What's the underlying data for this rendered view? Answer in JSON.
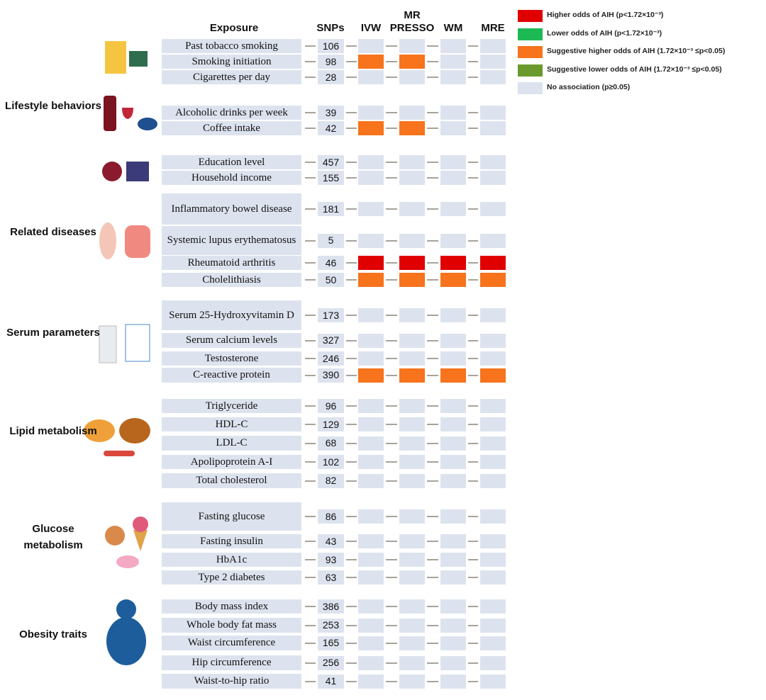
{
  "header": {
    "exposure": "Exposure",
    "snps": "SNPs",
    "methods": [
      "IVW",
      "MR PRESSO",
      "WM",
      "MRE"
    ]
  },
  "legend": [
    {
      "color": "#e00000",
      "label": "Higher odds of AIH (p<1.72×10⁻³)"
    },
    {
      "color": "#1db954",
      "label": "Lower odds of AIH (p<1.72×10⁻³)"
    },
    {
      "color": "#f7731c",
      "label": "Suggestive higher odds of AIH (1.72×10⁻³ ≤p<0.05)"
    },
    {
      "color": "#6a9a2e",
      "label": "Suggestive lower odds of AIH (1.72×10⁻³ ≤p<0.05)"
    },
    {
      "color": "#dde3ee",
      "label": "No association (p≥0.05)"
    }
  ],
  "groups": [
    {
      "label": "Lifestyle behaviors",
      "rows": [
        {
          "exposure": "Past tobacco smoking",
          "snps": "106",
          "cells": [
            "#dde3ee",
            "#dde3ee",
            "#dde3ee",
            "#dde3ee"
          ]
        },
        {
          "exposure": "Smoking initiation",
          "snps": "98",
          "cells": [
            "#f7731c",
            "#f7731c",
            "#dde3ee",
            "#dde3ee"
          ]
        },
        {
          "exposure": "Cigarettes per day",
          "snps": "28",
          "cells": [
            "#dde3ee",
            "#dde3ee",
            "#dde3ee",
            "#dde3ee"
          ]
        },
        {
          "exposure": "Alcoholic drinks per week",
          "snps": "39",
          "cells": [
            "#dde3ee",
            "#dde3ee",
            "#dde3ee",
            "#dde3ee"
          ]
        },
        {
          "exposure": "Coffee intake",
          "snps": "42",
          "cells": [
            "#f7731c",
            "#f7731c",
            "#dde3ee",
            "#dde3ee"
          ]
        },
        {
          "exposure": "Education level",
          "snps": "457",
          "cells": [
            "#dde3ee",
            "#dde3ee",
            "#dde3ee",
            "#dde3ee"
          ]
        },
        {
          "exposure": "Household income",
          "snps": "155",
          "cells": [
            "#dde3ee",
            "#dde3ee",
            "#dde3ee",
            "#dde3ee"
          ]
        }
      ]
    },
    {
      "label": "Related diseases",
      "rows": [
        {
          "exposure": "Inflammatory bowel disease",
          "snps": "181",
          "cells": [
            "#dde3ee",
            "#dde3ee",
            "#dde3ee",
            "#dde3ee"
          ]
        },
        {
          "exposure": "Systemic lupus erythematosus",
          "snps": "5",
          "cells": [
            "#dde3ee",
            "#dde3ee",
            "#dde3ee",
            "#dde3ee"
          ]
        },
        {
          "exposure": "Rheumatoid arthritis",
          "snps": "46",
          "cells": [
            "#e00000",
            "#e00000",
            "#e00000",
            "#e00000"
          ]
        },
        {
          "exposure": "Cholelithiasis",
          "snps": "50",
          "cells": [
            "#f7731c",
            "#f7731c",
            "#f7731c",
            "#f7731c"
          ]
        }
      ]
    },
    {
      "label": "Serum parameters",
      "rows": [
        {
          "exposure": "Serum 25-Hydroxyvitamin D",
          "snps": "173",
          "cells": [
            "#dde3ee",
            "#dde3ee",
            "#dde3ee",
            "#dde3ee"
          ]
        },
        {
          "exposure": "Serum calcium levels",
          "snps": "327",
          "cells": [
            "#dde3ee",
            "#dde3ee",
            "#dde3ee",
            "#dde3ee"
          ]
        },
        {
          "exposure": "Testosterone",
          "snps": "246",
          "cells": [
            "#dde3ee",
            "#dde3ee",
            "#dde3ee",
            "#dde3ee"
          ]
        },
        {
          "exposure": "C-reactive protein",
          "snps": "390",
          "cells": [
            "#f7731c",
            "#f7731c",
            "#f7731c",
            "#f7731c"
          ]
        }
      ]
    },
    {
      "label": "Lipid metabolism",
      "rows": [
        {
          "exposure": "Triglyceride",
          "snps": "96",
          "cells": [
            "#dde3ee",
            "#dde3ee",
            "#dde3ee",
            "#dde3ee"
          ]
        },
        {
          "exposure": "HDL-C",
          "snps": "129",
          "cells": [
            "#dde3ee",
            "#dde3ee",
            "#dde3ee",
            "#dde3ee"
          ]
        },
        {
          "exposure": "LDL-C",
          "snps": "68",
          "cells": [
            "#dde3ee",
            "#dde3ee",
            "#dde3ee",
            "#dde3ee"
          ]
        },
        {
          "exposure": "Apolipoprotein A-I",
          "snps": "102",
          "cells": [
            "#dde3ee",
            "#dde3ee",
            "#dde3ee",
            "#dde3ee"
          ]
        },
        {
          "exposure": "Total cholesterol",
          "snps": "82",
          "cells": [
            "#dde3ee",
            "#dde3ee",
            "#dde3ee",
            "#dde3ee"
          ]
        }
      ]
    },
    {
      "label": "Glucose metabolism",
      "rows": [
        {
          "exposure": "Fasting glucose",
          "snps": "86",
          "cells": [
            "#dde3ee",
            "#dde3ee",
            "#dde3ee",
            "#dde3ee"
          ]
        },
        {
          "exposure": "Fasting insulin",
          "snps": "43",
          "cells": [
            "#dde3ee",
            "#dde3ee",
            "#dde3ee",
            "#dde3ee"
          ]
        },
        {
          "exposure": "HbA1c",
          "snps": "93",
          "cells": [
            "#dde3ee",
            "#dde3ee",
            "#dde3ee",
            "#dde3ee"
          ]
        },
        {
          "exposure": "Type 2 diabetes",
          "snps": "63",
          "cells": [
            "#dde3ee",
            "#dde3ee",
            "#dde3ee",
            "#dde3ee"
          ]
        }
      ]
    },
    {
      "label": "Obesity traits",
      "rows": [
        {
          "exposure": "Body mass index",
          "snps": "386",
          "cells": [
            "#dde3ee",
            "#dde3ee",
            "#dde3ee",
            "#dde3ee"
          ]
        },
        {
          "exposure": "Whole body fat mass",
          "snps": "253",
          "cells": [
            "#dde3ee",
            "#dde3ee",
            "#dde3ee",
            "#dde3ee"
          ]
        },
        {
          "exposure": "Waist circumference",
          "snps": "165",
          "cells": [
            "#dde3ee",
            "#dde3ee",
            "#dde3ee",
            "#dde3ee"
          ]
        },
        {
          "exposure": "Hip circumference",
          "snps": "256",
          "cells": [
            "#dde3ee",
            "#dde3ee",
            "#dde3ee",
            "#dde3ee"
          ]
        },
        {
          "exposure": "Waist-to-hip ratio",
          "snps": "41",
          "cells": [
            "#dde3ee",
            "#dde3ee",
            "#dde3ee",
            "#dde3ee"
          ]
        }
      ]
    }
  ]
}
